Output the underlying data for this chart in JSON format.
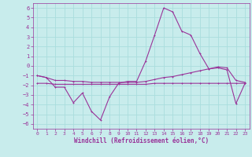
{
  "xlabel": "Windchill (Refroidissement éolien,°C)",
  "ylabel": "",
  "background_color": "#c8ecec",
  "grid_color": "#aadddd",
  "line_color": "#993399",
  "xlim": [
    -0.5,
    23.5
  ],
  "ylim": [
    -6.5,
    6.5
  ],
  "yticks": [
    -6,
    -5,
    -4,
    -3,
    -2,
    -1,
    0,
    1,
    2,
    3,
    4,
    5,
    6
  ],
  "xticks": [
    0,
    1,
    2,
    3,
    4,
    5,
    6,
    7,
    8,
    9,
    10,
    11,
    12,
    13,
    14,
    15,
    16,
    17,
    18,
    19,
    20,
    21,
    22,
    23
  ],
  "line1_x": [
    0,
    1,
    2,
    3,
    4,
    5,
    6,
    7,
    8,
    9,
    10,
    11,
    12,
    13,
    14,
    15,
    16,
    17,
    18,
    19,
    20,
    21,
    22,
    23
  ],
  "line1_y": [
    -1.0,
    -1.2,
    -2.2,
    -2.2,
    -3.8,
    -2.8,
    -4.7,
    -5.6,
    -3.2,
    -1.8,
    -1.6,
    -1.6,
    0.5,
    3.2,
    6.0,
    5.6,
    3.6,
    3.2,
    1.3,
    -0.3,
    -0.2,
    -0.4,
    -3.9,
    -1.8
  ],
  "line2_x": [
    0,
    1,
    2,
    3,
    4,
    5,
    6,
    7,
    8,
    9,
    10,
    11,
    12,
    13,
    14,
    15,
    16,
    17,
    18,
    19,
    20,
    21,
    22,
    23
  ],
  "line2_y": [
    -1.8,
    -1.8,
    -1.9,
    -1.9,
    -1.9,
    -1.9,
    -1.9,
    -1.9,
    -1.9,
    -1.9,
    -1.9,
    -1.9,
    -1.9,
    -1.8,
    -1.8,
    -1.8,
    -1.8,
    -1.8,
    -1.8,
    -1.8,
    -1.8,
    -1.8,
    -1.8,
    -1.8
  ],
  "line3_x": [
    0,
    1,
    2,
    3,
    4,
    5,
    6,
    7,
    8,
    9,
    10,
    11,
    12,
    13,
    14,
    15,
    16,
    17,
    18,
    19,
    20,
    21,
    22,
    23
  ],
  "line3_y": [
    -1.0,
    -1.2,
    -1.5,
    -1.5,
    -1.6,
    -1.6,
    -1.7,
    -1.7,
    -1.7,
    -1.7,
    -1.7,
    -1.7,
    -1.6,
    -1.4,
    -1.2,
    -1.1,
    -0.9,
    -0.7,
    -0.5,
    -0.3,
    -0.1,
    -0.2,
    -1.5,
    -1.7
  ]
}
